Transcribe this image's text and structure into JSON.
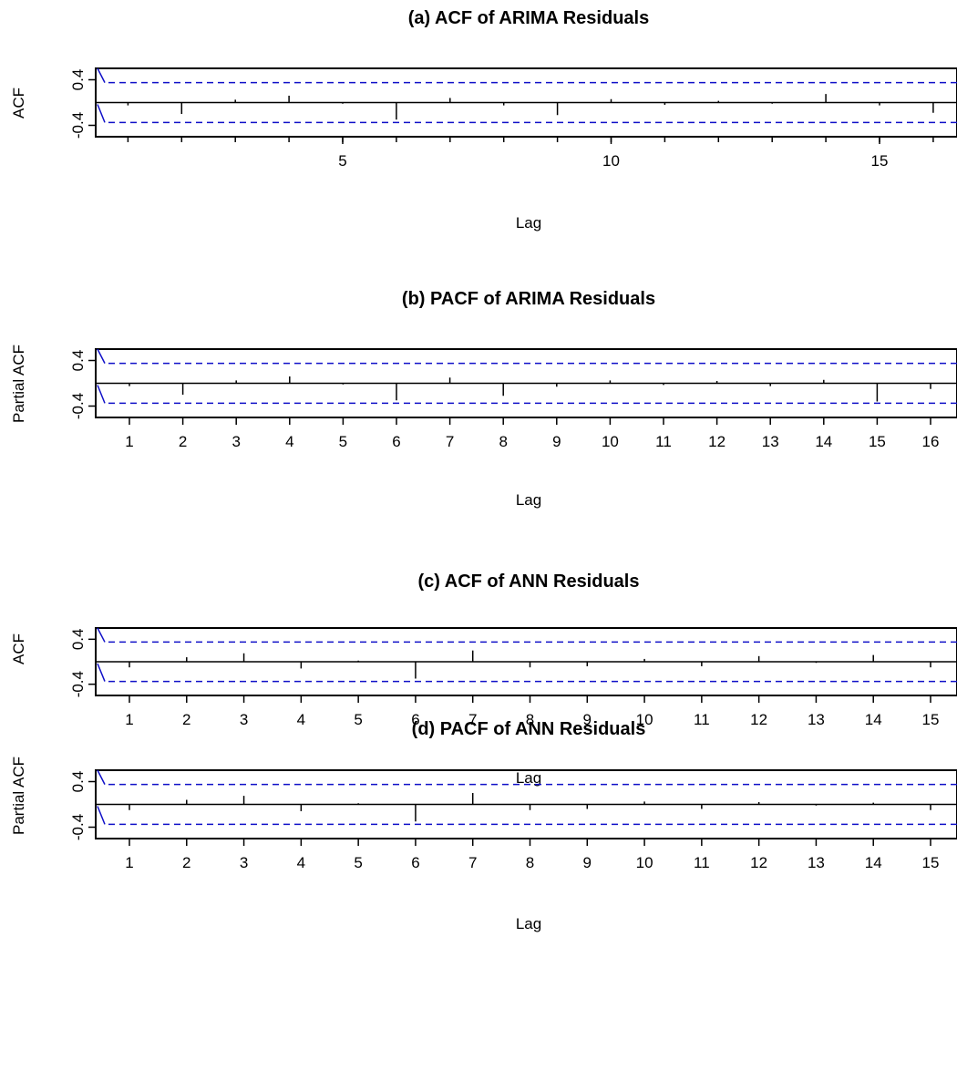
{
  "chart_data": [
    {
      "type": "bar",
      "title": "(a) ACF of ARIMA Residuals",
      "xlabel": "Lag",
      "ylabel": "ACF",
      "x_tick_labels": [
        "5",
        "10",
        "15"
      ],
      "x_ticks": [
        5,
        10,
        15
      ],
      "y_tick_labels": [
        "0.4",
        "-0.4"
      ],
      "y_ticks": [
        0.4,
        -0.4
      ],
      "xlim": [
        0.4,
        16.4
      ],
      "ylim": [
        -0.6,
        0.6
      ],
      "confidence_bound": 0.35,
      "lags": [
        1,
        2,
        3,
        4,
        5,
        6,
        7,
        8,
        9,
        10,
        11,
        12,
        13,
        14,
        15,
        16
      ],
      "values": [
        -0.05,
        -0.2,
        0.05,
        0.12,
        -0.02,
        -0.3,
        0.08,
        -0.05,
        -0.22,
        0.06,
        -0.04,
        0.03,
        -0.02,
        0.15,
        -0.05,
        -0.18
      ],
      "line_color": "#1010c8"
    },
    {
      "type": "bar",
      "title": "(b) PACF of ARIMA Residuals",
      "xlabel": "Lag",
      "ylabel": "Partial ACF",
      "x_tick_labels": [
        "1",
        "2",
        "3",
        "4",
        "5",
        "6",
        "7",
        "8",
        "9",
        "10",
        "11",
        "12",
        "13",
        "14",
        "15",
        "16"
      ],
      "x_ticks": [
        1,
        2,
        3,
        4,
        5,
        6,
        7,
        8,
        9,
        10,
        11,
        12,
        13,
        14,
        15,
        16
      ],
      "y_tick_labels": [
        "0.4",
        "-0.4"
      ],
      "y_ticks": [
        0.4,
        -0.4
      ],
      "xlim": [
        0.4,
        16.4
      ],
      "ylim": [
        -0.6,
        0.6
      ],
      "confidence_bound": 0.35,
      "lags": [
        1,
        2,
        3,
        4,
        5,
        6,
        7,
        8,
        9,
        10,
        11,
        12,
        13,
        14,
        15,
        16
      ],
      "values": [
        -0.05,
        -0.2,
        0.05,
        0.12,
        -0.02,
        -0.3,
        0.1,
        -0.22,
        -0.06,
        0.05,
        -0.03,
        0.04,
        -0.05,
        0.06,
        -0.32,
        -0.1
      ],
      "line_color": "#1010c8"
    },
    {
      "type": "bar",
      "title": "(c) ACF of ANN Residuals",
      "xlabel": "Lag",
      "ylabel": "ACF",
      "x_tick_labels": [
        "1",
        "2",
        "3",
        "4",
        "5",
        "6",
        "7",
        "8",
        "9",
        "10",
        "11",
        "12",
        "13",
        "14",
        "15"
      ],
      "x_ticks": [
        1,
        2,
        3,
        4,
        5,
        6,
        7,
        8,
        9,
        10,
        11,
        12,
        13,
        14,
        15
      ],
      "y_tick_labels": [
        "0.4",
        "-0.4"
      ],
      "y_ticks": [
        0.4,
        -0.4
      ],
      "xlim": [
        0.4,
        15.4
      ],
      "ylim": [
        -0.6,
        0.6
      ],
      "confidence_bound": 0.35,
      "lags": [
        1,
        2,
        3,
        4,
        5,
        6,
        7,
        8,
        9,
        10,
        11,
        12,
        13,
        14,
        15
      ],
      "values": [
        -0.1,
        0.08,
        0.15,
        -0.12,
        0.02,
        -0.3,
        0.2,
        -0.1,
        -0.08,
        0.05,
        -0.08,
        0.1,
        -0.02,
        0.12,
        -0.1
      ],
      "line_color": "#1010c8"
    },
    {
      "type": "bar",
      "title": "(d) PACF of ANN Residuals",
      "xlabel": "Lag",
      "ylabel": "Partial ACF",
      "x_tick_labels": [
        "1",
        "2",
        "3",
        "4",
        "5",
        "6",
        "7",
        "8",
        "9",
        "10",
        "11",
        "12",
        "13",
        "14",
        "15"
      ],
      "x_ticks": [
        1,
        2,
        3,
        4,
        5,
        6,
        7,
        8,
        9,
        10,
        11,
        12,
        13,
        14,
        15
      ],
      "y_tick_labels": [
        "0.4",
        "-0.4"
      ],
      "y_ticks": [
        0.4,
        -0.4
      ],
      "xlim": [
        0.4,
        15.4
      ],
      "ylim": [
        -0.6,
        0.6
      ],
      "confidence_bound": 0.35,
      "lags": [
        1,
        2,
        3,
        4,
        5,
        6,
        7,
        8,
        9,
        10,
        11,
        12,
        13,
        14,
        15
      ],
      "values": [
        -0.1,
        0.08,
        0.15,
        -0.12,
        0.02,
        -0.3,
        0.2,
        -0.1,
        -0.08,
        0.05,
        -0.08,
        0.04,
        -0.02,
        0.03,
        -0.1
      ],
      "line_color": "#1010c8"
    }
  ]
}
